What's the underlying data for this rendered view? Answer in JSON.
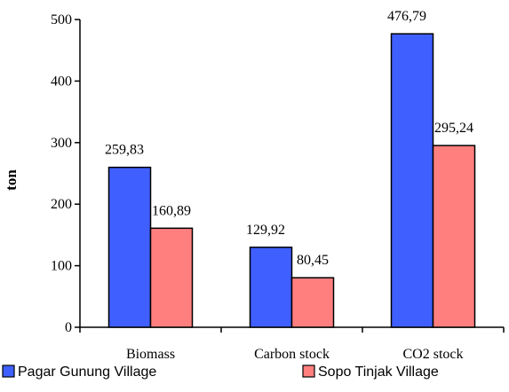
{
  "chart_data": {
    "type": "bar",
    "categories": [
      "Biomass",
      "Carbon stock",
      "CO2 stock"
    ],
    "series": [
      {
        "name": "Pagar Gunung Village",
        "values": [
          259.83,
          129.92,
          476.79
        ],
        "labels": [
          "259,83",
          "129,92",
          "476,79"
        ],
        "color": "#3f5fff"
      },
      {
        "name": "Sopo Tinjak Village",
        "values": [
          160.89,
          80.45,
          295.24
        ],
        "labels": [
          "160,89",
          "80,45",
          "295,24"
        ],
        "color": "#ff7f7f"
      }
    ],
    "ylabel": "ton",
    "ylim": [
      0,
      500
    ],
    "yticks": [
      "0",
      "100",
      "200",
      "300",
      "400",
      "500"
    ],
    "grid": false,
    "legend": "bottom"
  }
}
